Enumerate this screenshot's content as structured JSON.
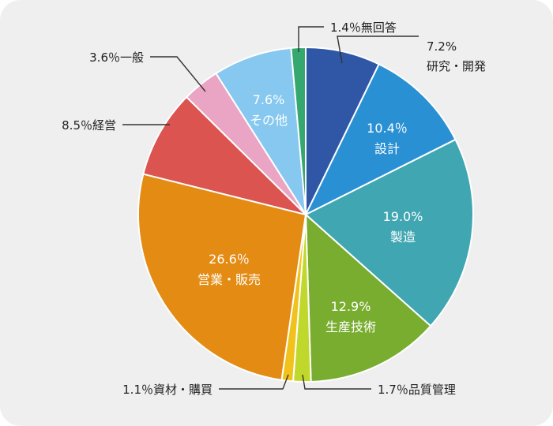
{
  "chart_data": {
    "type": "pie",
    "start": "top",
    "direction": "clockwise",
    "slices": [
      {
        "key": "rd",
        "lines": [
          "7.2%",
          "研究・開発"
        ],
        "value": 7.2,
        "color": "#2f57a6",
        "label": "outside"
      },
      {
        "key": "design",
        "lines": [
          "10.4％",
          "設計"
        ],
        "value": 10.4,
        "color": "#2a90d4",
        "label": "inside"
      },
      {
        "key": "mfg",
        "lines": [
          "19.0%",
          "製造"
        ],
        "value": 19.0,
        "color": "#3fa6b2",
        "label": "inside"
      },
      {
        "key": "prodtech",
        "lines": [
          "12.9%",
          "生産技術"
        ],
        "value": 12.9,
        "color": "#79ad2f",
        "label": "inside"
      },
      {
        "key": "qa",
        "lines": [
          "1.7％品質管理"
        ],
        "value": 1.7,
        "color": "#c0d82c",
        "label": "outside"
      },
      {
        "key": "purch",
        "lines": [
          "1.1％資材・購買"
        ],
        "value": 1.1,
        "color": "#f1c21b",
        "label": "outside"
      },
      {
        "key": "sales",
        "lines": [
          "26.6％",
          "営業・販売"
        ],
        "value": 26.6,
        "color": "#e48b13",
        "label": "inside"
      },
      {
        "key": "mgmt",
        "lines": [
          "8.5％経営"
        ],
        "value": 8.5,
        "color": "#db5450",
        "label": "outside"
      },
      {
        "key": "general",
        "lines": [
          "3.6％一般"
        ],
        "value": 3.6,
        "color": "#eaa4c4",
        "label": "outside"
      },
      {
        "key": "other",
        "lines": [
          "7.6%",
          "その他"
        ],
        "value": 7.6,
        "color": "#86c8ef",
        "label": "inside"
      },
      {
        "key": "noans",
        "lines": [
          "1.4％無回答"
        ],
        "value": 1.4,
        "color": "#34a86f",
        "label": "outside"
      }
    ]
  }
}
